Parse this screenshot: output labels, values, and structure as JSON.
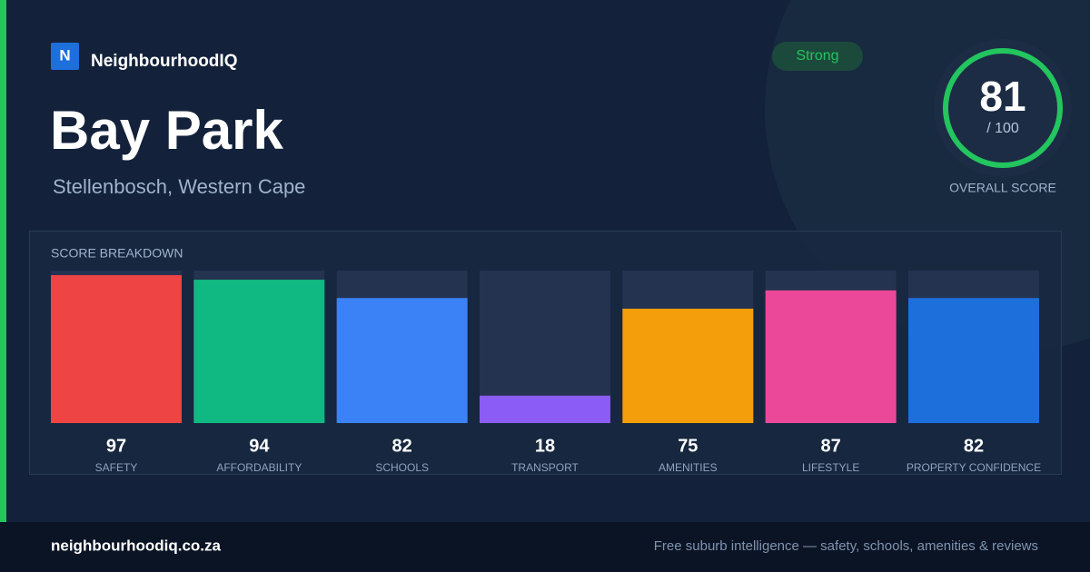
{
  "brand": {
    "logo": "N",
    "name": "NeighbourhoodIQ"
  },
  "header": {
    "title": "Bay Park",
    "location": "Stellenbosch, Western Cape",
    "badge": "Strong"
  },
  "overall": {
    "score": "81",
    "suffix": "/ 100",
    "label": "OVERALL SCORE"
  },
  "chart_data": {
    "type": "bar",
    "title": "SCORE BREAKDOWN",
    "categories": [
      "SAFETY",
      "AFFORDABILITY",
      "SCHOOLS",
      "TRANSPORT",
      "AMENITIES",
      "LIFESTYLE",
      "PROPERTY CONFIDENCE"
    ],
    "values": [
      97,
      94,
      82,
      18,
      75,
      87,
      82
    ],
    "colors": [
      "#ef4444",
      "#10b981",
      "#3b82f6",
      "#8b5cf6",
      "#f59e0b",
      "#ec4899",
      "#1d6fdc"
    ],
    "ylim": [
      0,
      100
    ]
  },
  "footer": {
    "site": "neighbourhoodiq.co.za",
    "tagline": "Free suburb intelligence — safety, schools, amenities & reviews"
  }
}
